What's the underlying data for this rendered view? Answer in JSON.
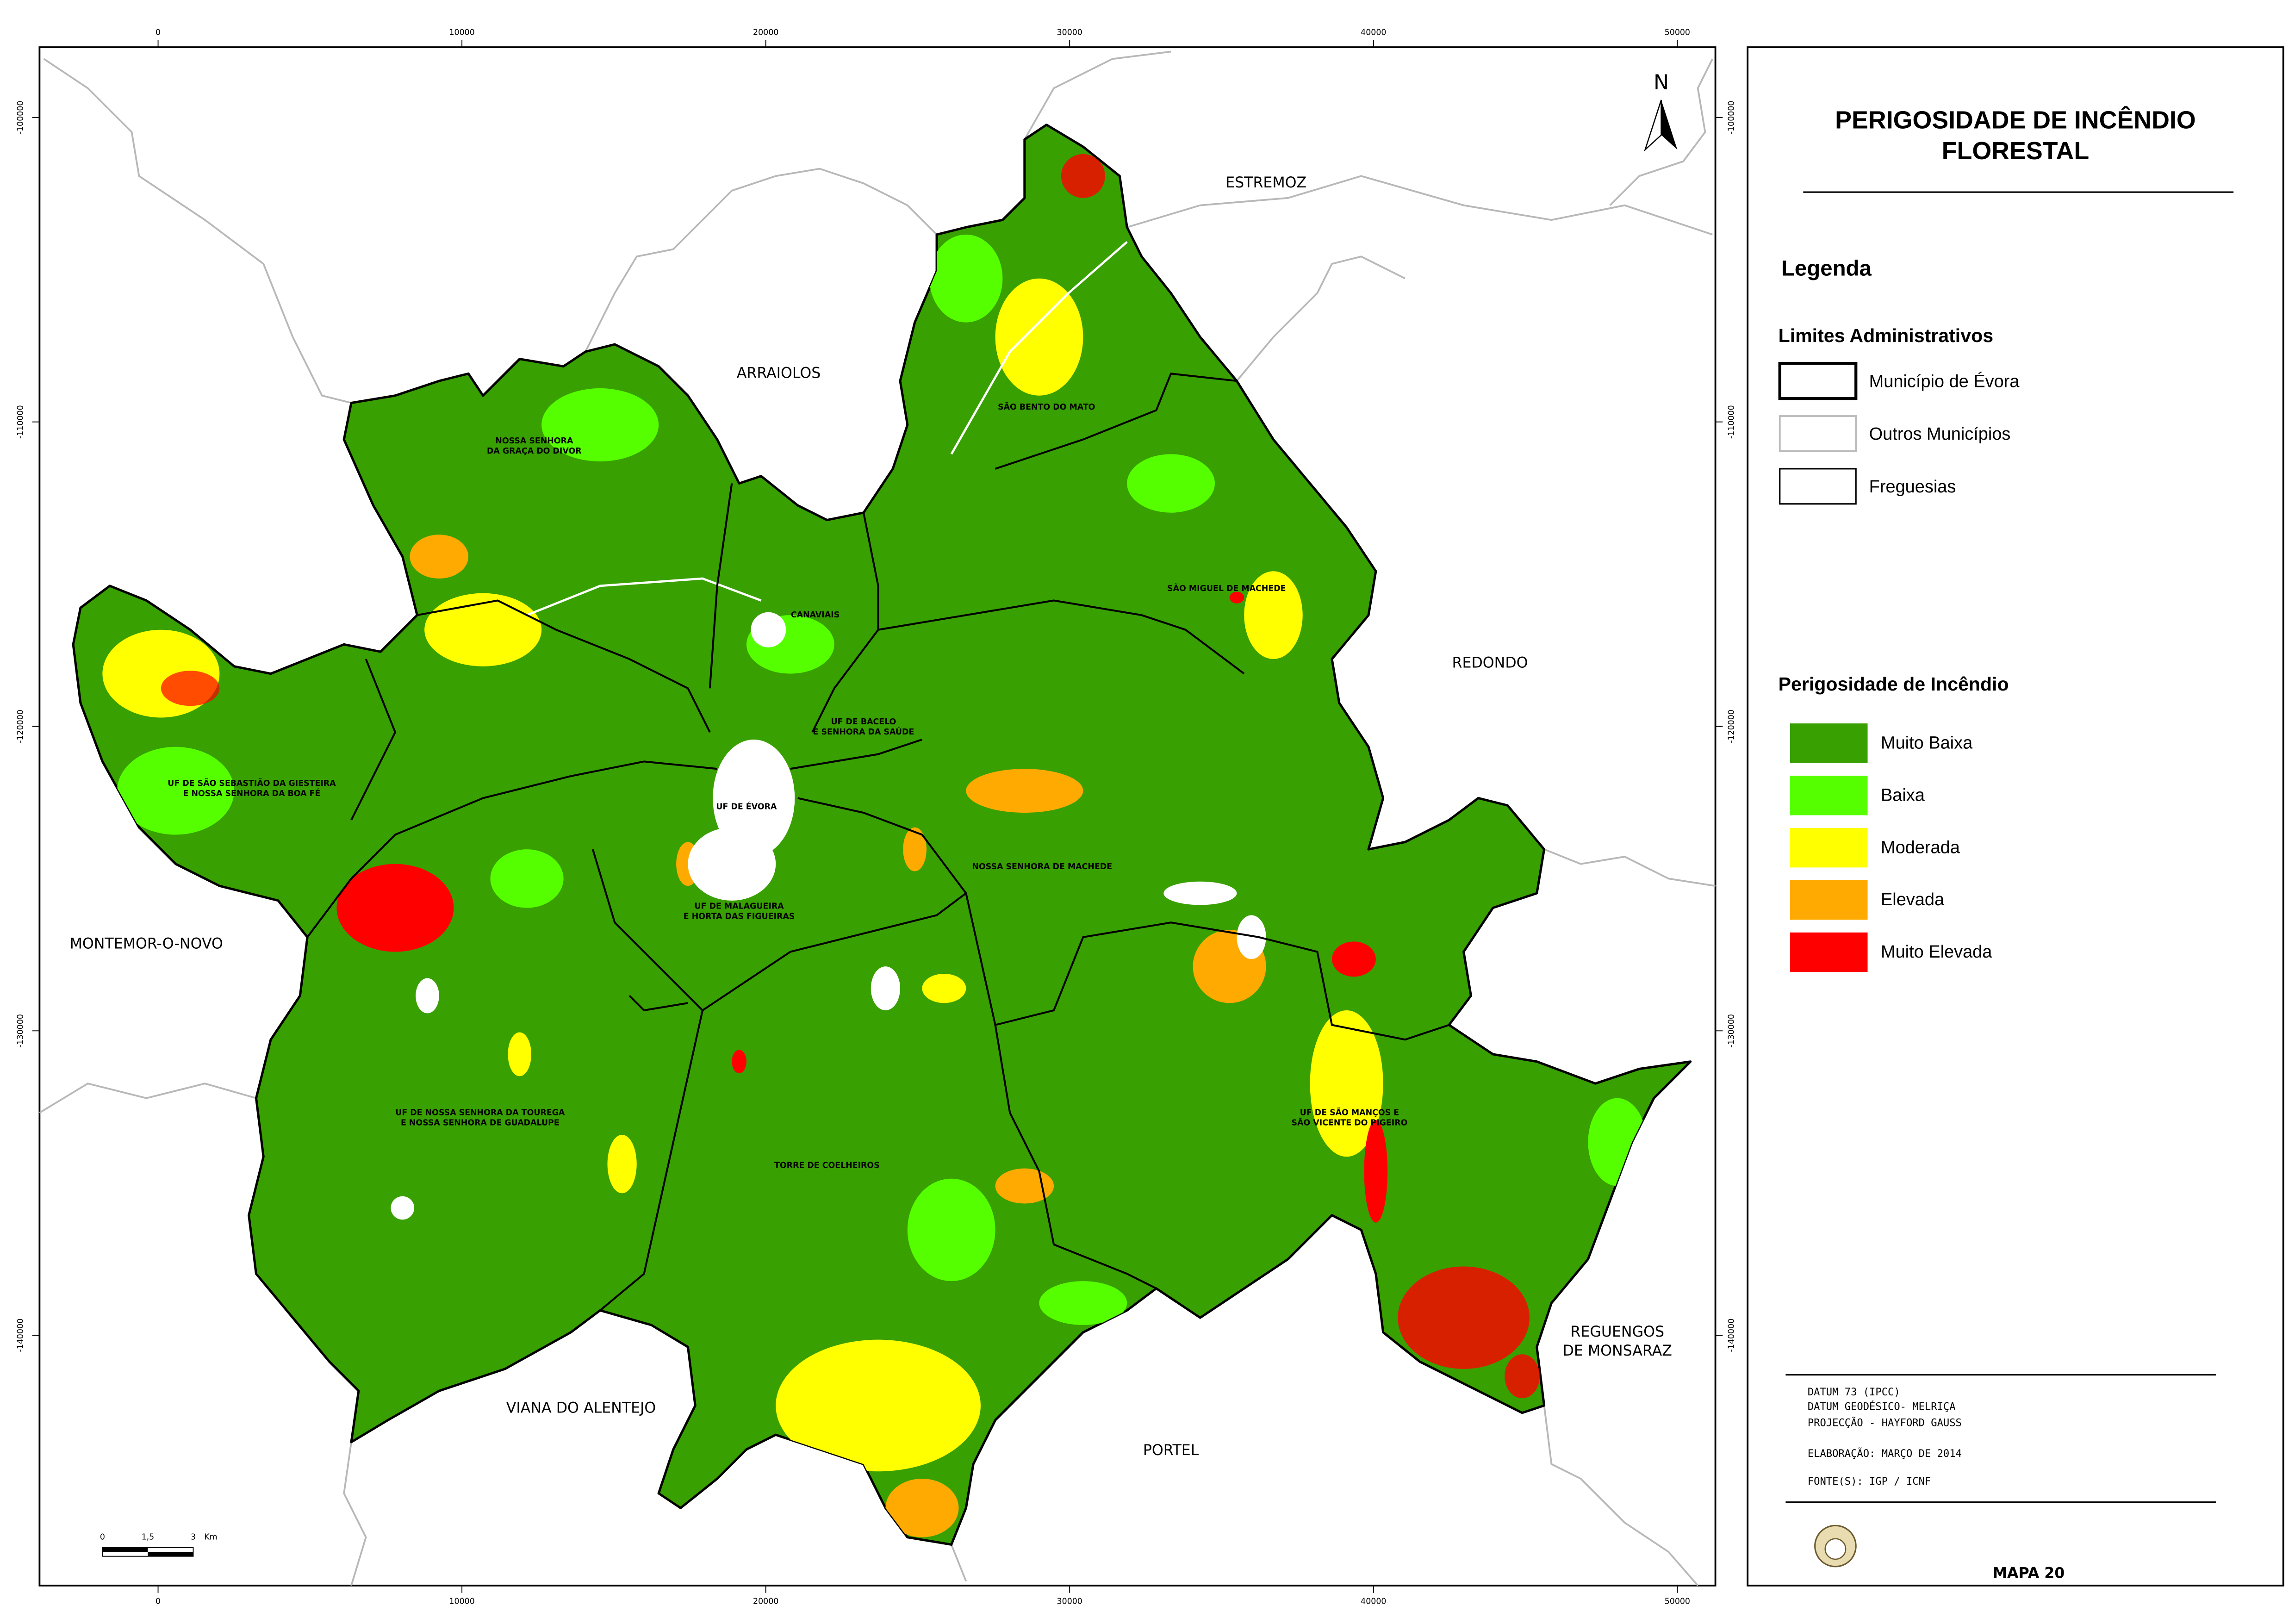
{
  "title_lines": [
    "PERIGOSIDADE DE INCÊNDIO",
    "FLORESTAL"
  ],
  "north": "N",
  "legend": {
    "heading": "Legenda",
    "admin": {
      "heading": "Limites Administrativos",
      "items": [
        "Município de Évora",
        "Outros Municípios",
        "Freguesias"
      ]
    },
    "hazard": {
      "heading": "Perigosidade de Incêndio",
      "items": [
        {
          "label": "Muito Baixa",
          "color": "#38a000"
        },
        {
          "label": "Baixa",
          "color": "#55ff00"
        },
        {
          "label": "Moderada",
          "color": "#ffff00"
        },
        {
          "label": "Elevada",
          "color": "#ffaa00"
        },
        {
          "label": "Muito Elevada",
          "color": "#ff0000"
        }
      ]
    }
  },
  "xticks": [
    0,
    10000,
    20000,
    30000,
    40000,
    50000
  ],
  "yticks": [
    -100000,
    -110000,
    -120000,
    -130000,
    -140000
  ],
  "neighbours": [
    {
      "lines": [
        "ESTREMOZ"
      ]
    },
    {
      "lines": [
        "ARRAIOLOS"
      ]
    },
    {
      "lines": [
        "REDONDO"
      ]
    },
    {
      "lines": [
        "MONTEMOR-O-NOVO"
      ]
    },
    {
      "lines": [
        "VIANA DO ALENTEJO"
      ]
    },
    {
      "lines": [
        "PORTEL"
      ]
    },
    {
      "lines": [
        "REGUENGOS",
        "DE MONSARAZ"
      ]
    }
  ],
  "parishes": [
    {
      "lines": [
        "NOSSA SENHORA",
        "DA GRAÇA DO DIVOR"
      ]
    },
    {
      "lines": [
        "SÃO BENTO DO MATO"
      ]
    },
    {
      "lines": [
        "CANAVIAIS"
      ]
    },
    {
      "lines": [
        "SÃO MIGUEL DE MACHEDE"
      ]
    },
    {
      "lines": [
        "UF DE BACELO",
        "E SENHORA DA SAÚDE"
      ]
    },
    {
      "lines": [
        "UF DE SÃO SEBASTIÃO DA GIESTEIRA",
        "E NOSSA SENHORA DA BOA FÉ"
      ]
    },
    {
      "lines": [
        "UF DE ÉVORA"
      ]
    },
    {
      "lines": [
        "NOSSA SENHORA DE MACHEDE"
      ]
    },
    {
      "lines": [
        "UF DE MALAGUEIRA",
        "E HORTA DAS FIGUEIRAS"
      ]
    },
    {
      "lines": [
        "UF DE NOSSA SENHORA DA TOUREGA",
        "E NOSSA SENHORA DE GUADALUPE"
      ]
    },
    {
      "lines": [
        "TORRE DE COELHEIROS"
      ]
    },
    {
      "lines": [
        "UF DE SÃO MANÇOS E",
        "SÃO VICENTE DO PIGEIRO"
      ]
    }
  ],
  "scale_bar": {
    "ticks": [
      0,
      {
        "value": 1.5,
        "label": "1,5"
      },
      3
    ],
    "unit": "Km"
  },
  "credits": [
    "DATUM 73 (IPCC)",
    "DATUM GEODÉSICO- MELRIÇA",
    "PROJECÇÃO - HAYFORD GAUSS",
    "ELABORAÇÃO: MARÇO DE 2014",
    "FONTE(S): IGP / ICNF"
  ],
  "map_number": "MAPA 20"
}
